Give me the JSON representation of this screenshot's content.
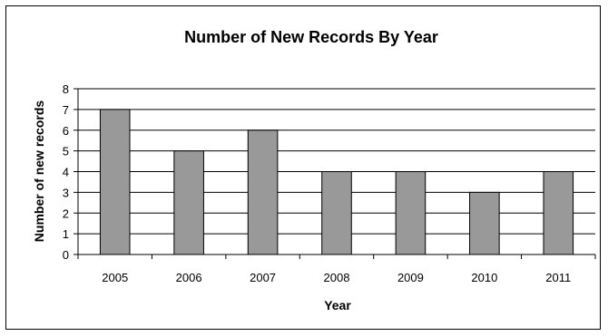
{
  "chart_data": {
    "type": "bar",
    "title": "Number of New Records By Year",
    "xlabel": "Year",
    "ylabel": "Number of new records",
    "categories": [
      "2005",
      "2006",
      "2007",
      "2008",
      "2009",
      "2010",
      "2011"
    ],
    "values": [
      7,
      5,
      6,
      4,
      4,
      3,
      4
    ],
    "ylim": [
      0,
      8
    ],
    "yticks": [
      "0",
      "1",
      "2",
      "3",
      "4",
      "5",
      "6",
      "7",
      "8"
    ],
    "grid": true,
    "legend": "none",
    "colors": {
      "bar_fill": "#999999",
      "bar_stroke": "#000000",
      "gridline": "#000000",
      "plot_background": "#ffffff"
    }
  }
}
